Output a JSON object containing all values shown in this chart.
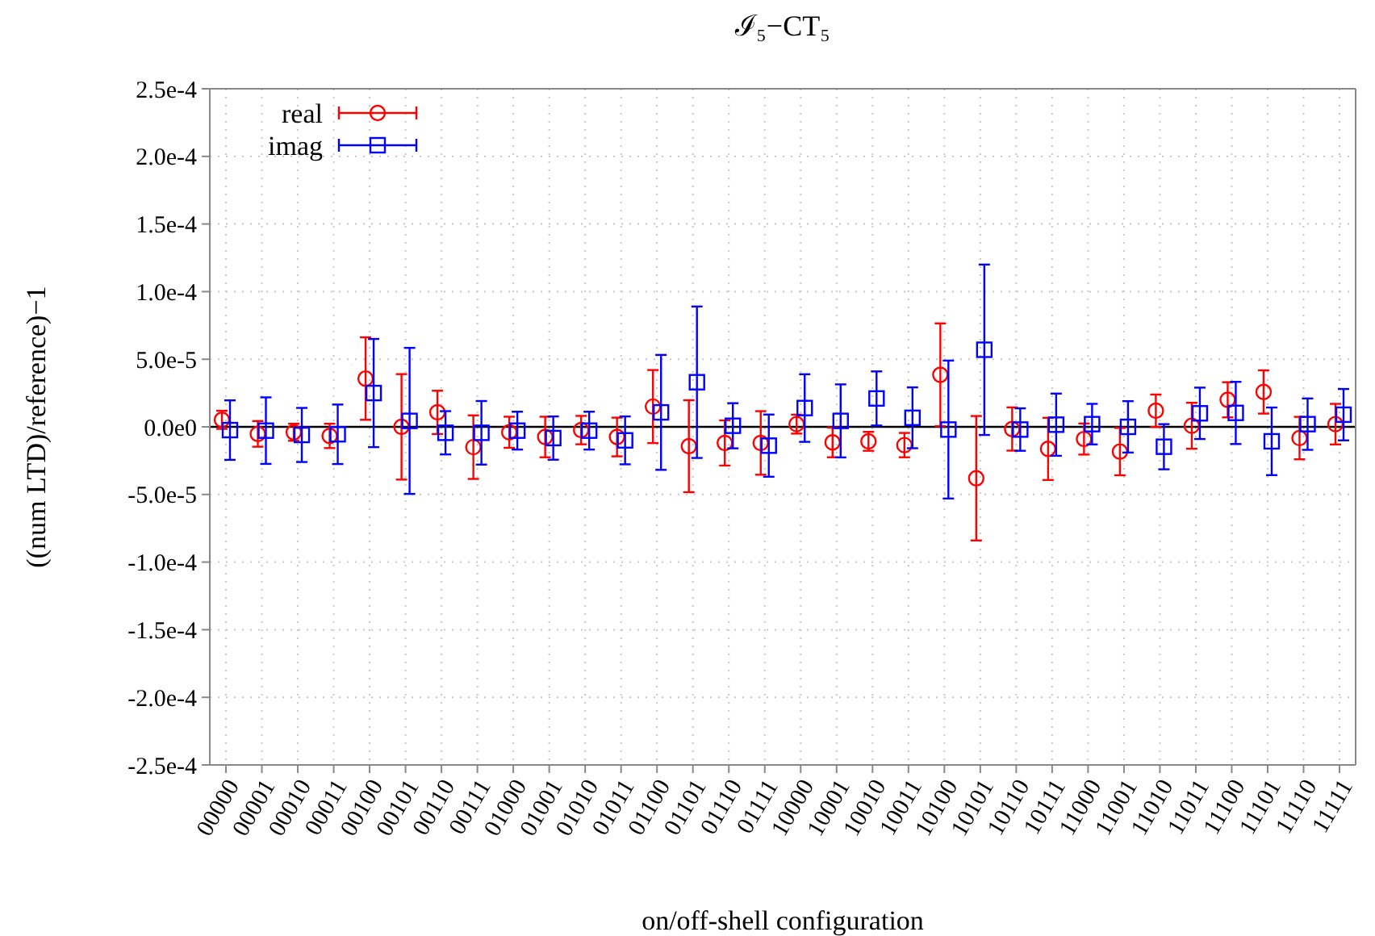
{
  "chart_data": {
    "type": "scatter",
    "title": "ℐ₅−CT₅",
    "xlabel": "on/off-shell configuration",
    "ylabel": "((num LTD)/reference)−1",
    "categories": [
      "00000",
      "00001",
      "00010",
      "00011",
      "00100",
      "00101",
      "00110",
      "00111",
      "01000",
      "01001",
      "01010",
      "01011",
      "01100",
      "01101",
      "01110",
      "01111",
      "10000",
      "10001",
      "10010",
      "10011",
      "10100",
      "10101",
      "10110",
      "10111",
      "11000",
      "11001",
      "11010",
      "11011",
      "11100",
      "11101",
      "11110",
      "11111"
    ],
    "series": [
      {
        "name": "real",
        "color": "#ff0000",
        "marker": "circle",
        "values": [
          5.2e-06,
          -5.2e-06,
          -4e-06,
          -6.7e-06,
          3.57e-05,
          0,
          1.07e-05,
          -1.5e-05,
          -4e-06,
          -7.5e-06,
          -2.4e-06,
          -7.5e-06,
          1.5e-05,
          -1.43e-05,
          -1.19e-05,
          -1.19e-05,
          2e-06,
          -1.15e-05,
          -1.07e-05,
          -1.35e-05,
          3.85e-05,
          -3.8e-05,
          -1.6e-06,
          -1.63e-05,
          -9e-06,
          -1.83e-05,
          1.19e-05,
          8e-07,
          2e-05,
          2.58e-05,
          -8.3e-06,
          2e-06
        ],
        "errors": [
          6.7e-06,
          9.5e-06,
          6.3e-06,
          9e-06,
          3.05e-05,
          3.9e-05,
          1.6e-05,
          2.35e-05,
          1.15e-05,
          1.5e-05,
          1.05e-05,
          1.43e-05,
          2.7e-05,
          3.4e-05,
          1.67e-05,
          2.35e-05,
          7e-06,
          1.1e-05,
          7e-06,
          9e-06,
          3.8e-05,
          4.6e-05,
          1.6e-05,
          2.3e-05,
          1.15e-05,
          1.75e-05,
          1.2e-05,
          1.7e-05,
          1.3e-05,
          1.6e-05,
          1.57e-05,
          1.5e-05
        ]
      },
      {
        "name": "imag",
        "color": "#0000ff",
        "marker": "square",
        "values": [
          -2.4e-06,
          -2.8e-06,
          -6e-06,
          -5.5e-06,
          2.5e-05,
          4.4e-06,
          -4.4e-06,
          -4.4e-06,
          -2.8e-06,
          -8.3e-06,
          -2.8e-06,
          -1e-05,
          1.07e-05,
          3.3e-05,
          8e-07,
          -1.39e-05,
          1.39e-05,
          4.4e-06,
          2.1e-05,
          6.7e-06,
          -2e-06,
          5.7e-05,
          -2e-06,
          1.6e-06,
          2e-06,
          0,
          -1.47e-05,
          1e-05,
          1.03e-05,
          -1.07e-05,
          2e-06,
          9e-06
        ],
        "errors": [
          2.2e-05,
          2.46e-05,
          2e-05,
          2.2e-05,
          4e-05,
          5.4e-05,
          1.6e-05,
          2.35e-05,
          1.4e-05,
          1.6e-05,
          1.4e-05,
          1.77e-05,
          4.25e-05,
          5.6e-05,
          1.67e-05,
          2.3e-05,
          2.5e-05,
          2.7e-05,
          2e-05,
          2.25e-05,
          5.1e-05,
          6.3e-05,
          1.57e-05,
          2.3e-05,
          1.5e-05,
          1.9e-05,
          1.67e-05,
          1.9e-05,
          2.3e-05,
          2.5e-05,
          1.9e-05,
          1.9e-05
        ]
      }
    ],
    "ylim": [
      -0.00025,
      0.00025
    ],
    "yticks": [
      {
        "value": -0.00025,
        "label": "-2.5e-4"
      },
      {
        "value": -0.0002,
        "label": "-2.0e-4"
      },
      {
        "value": -0.00015,
        "label": "-1.5e-4"
      },
      {
        "value": -0.0001,
        "label": "-1.0e-4"
      },
      {
        "value": -5e-05,
        "label": "-5.0e-5"
      },
      {
        "value": 0,
        "label": "0.0e0"
      },
      {
        "value": 5e-05,
        "label": "5.0e-5"
      },
      {
        "value": 0.0001,
        "label": "1.0e-4"
      },
      {
        "value": 0.00015,
        "label": "1.5e-4"
      },
      {
        "value": 0.0002,
        "label": "2.0e-4"
      },
      {
        "value": 0.00025,
        "label": "2.5e-4"
      }
    ],
    "ref_lines": [
      {
        "axis": "y",
        "value": 0,
        "color": "#000000"
      }
    ],
    "grid": true,
    "legend": "top left"
  }
}
